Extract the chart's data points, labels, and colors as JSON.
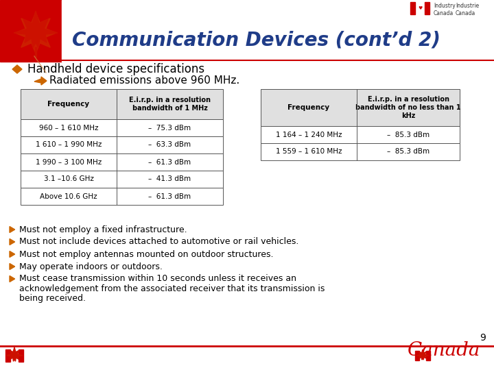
{
  "title": "Communication Devices (cont’d 2)",
  "title_color": "#1F3C88",
  "bg_color": "#FFFFFF",
  "bullet_main": "Handheld device specifications",
  "bullet_sub": "Radiated emissions above 960 MHz.",
  "table1_headers": [
    "Frequency",
    "E.i.r.p. in a resolution\nbandwidth of 1 MHz"
  ],
  "table1_rows": [
    [
      "960 – 1 610 MHz",
      "–  75.3 dBm"
    ],
    [
      "1 610 – 1 990 MHz",
      "–  63.3 dBm"
    ],
    [
      "1 990 – 3 100 MHz",
      "–  61.3 dBm"
    ],
    [
      "3.1 –10.6 GHz",
      "–  41.3 dBm"
    ],
    [
      "Above 10.6 GHz",
      "–  61.3 dBm"
    ]
  ],
  "table2_headers": [
    "Frequency",
    "E.i.r.p. in a resolution\nbandwidth of no less than 1\nkHz"
  ],
  "table2_rows": [
    [
      "1 164 – 1 240 MHz",
      "–  85.3 dBm"
    ],
    [
      "1 559 – 1 610 MHz",
      "–  85.3 dBm"
    ]
  ],
  "bullets": [
    "Must not employ a fixed infrastructure.",
    "Must not include devices attached to automotive or rail vehicles.",
    "Must not employ antennas mounted on outdoor structures.",
    "May operate indoors or outdoors.",
    "Must cease transmission within 10 seconds unless it receives an acknowledgement from the associated receiver that its transmission is being received."
  ],
  "page_number": "9",
  "header_bg": "#CC0000",
  "table_header_color": "#E8E8E8",
  "arrow_color": "#CC6600",
  "text_color": "#000000",
  "header_stripe_color": "#CC0000"
}
